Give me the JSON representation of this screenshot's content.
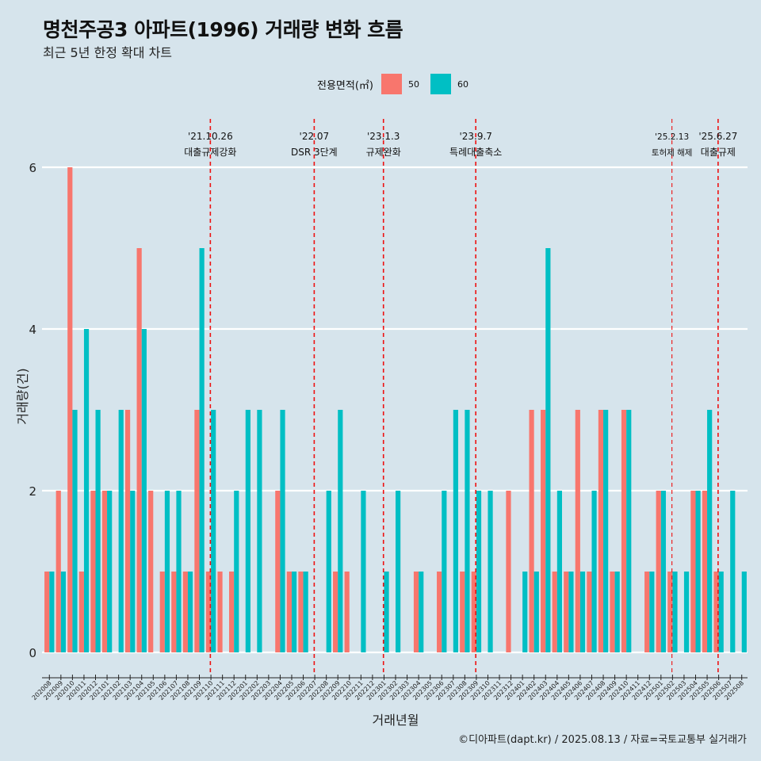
{
  "title": "명천주공3 아파트(1996) 거래량 변화 흐름",
  "subtitle": "최근 5년 한정 확대 차트",
  "caption": "©디아파트(dapt.kr) / 2025.08.13 / 자료=국토교통부 실거래가",
  "legend": {
    "title": "전용면적(㎡)",
    "items": [
      {
        "label": "50",
        "color": "#f8766d"
      },
      {
        "label": "60",
        "color": "#00bfc4"
      }
    ]
  },
  "chart_data": {
    "type": "bar",
    "title": "명천주공3 아파트(1996) 거래량 변화 흐름",
    "xlabel": "거래년월",
    "ylabel": "거래량(건)",
    "ylim": [
      0,
      6.3
    ],
    "yticks": [
      "0",
      "2",
      "4",
      "6"
    ],
    "categories": [
      "202008",
      "202009",
      "202010",
      "202011",
      "202012",
      "202101",
      "202102",
      "202103",
      "202104",
      "202105",
      "202106",
      "202107",
      "202108",
      "202109",
      "202110",
      "202111",
      "202112",
      "202201",
      "202202",
      "202203",
      "202204",
      "202205",
      "202206",
      "202207",
      "202208",
      "202209",
      "202210",
      "202211",
      "202212",
      "202301",
      "202302",
      "202303",
      "202304",
      "202305",
      "202306",
      "202307",
      "202308",
      "202309",
      "202310",
      "202311",
      "202312",
      "202401",
      "202402",
      "202403",
      "202404",
      "202405",
      "202406",
      "202407",
      "202408",
      "202409",
      "202410",
      "202411",
      "202412",
      "202501",
      "202502",
      "202503",
      "202504",
      "202505",
      "202506",
      "202507",
      "202508"
    ],
    "series": [
      {
        "name": "50",
        "color": "#f8766d",
        "values": [
          1,
          2,
          6,
          1,
          2,
          2,
          0,
          3,
          5,
          2,
          1,
          1,
          1,
          3,
          1,
          1,
          1,
          0,
          0,
          0,
          2,
          1,
          1,
          0,
          0,
          1,
          1,
          0,
          0,
          0,
          0,
          0,
          1,
          0,
          1,
          0,
          1,
          1,
          0,
          0,
          2,
          0,
          3,
          3,
          1,
          1,
          3,
          1,
          3,
          1,
          3,
          0,
          1,
          2,
          1,
          0,
          2,
          2,
          1,
          0,
          0
        ]
      },
      {
        "name": "60",
        "color": "#00bfc4",
        "values": [
          1,
          1,
          3,
          4,
          3,
          2,
          3,
          2,
          4,
          0,
          2,
          2,
          1,
          5,
          3,
          0,
          2,
          3,
          3,
          0,
          3,
          1,
          1,
          0,
          2,
          3,
          0,
          2,
          0,
          1,
          2,
          0,
          1,
          0,
          2,
          3,
          3,
          2,
          2,
          0,
          0,
          1,
          1,
          5,
          2,
          1,
          1,
          2,
          3,
          1,
          3,
          0,
          1,
          2,
          1,
          1,
          2,
          3,
          1,
          2,
          1
        ]
      }
    ],
    "annotations": [
      {
        "date": "'21.10.26",
        "label": "대출규제강화",
        "category": "202110"
      },
      {
        "date": "'22.07",
        "label": "DSR 3단계",
        "category": "202207"
      },
      {
        "date": "'23.1.3",
        "label": "규제완화",
        "category": "202301"
      },
      {
        "date": "'23.9.7",
        "label": "특례대출축소",
        "category": "202309"
      },
      {
        "date": "'25.2.13",
        "label": "토허제 해제",
        "category": "202502"
      },
      {
        "date": "'25.6.27",
        "label": "대출규제",
        "category": "202506"
      }
    ]
  }
}
